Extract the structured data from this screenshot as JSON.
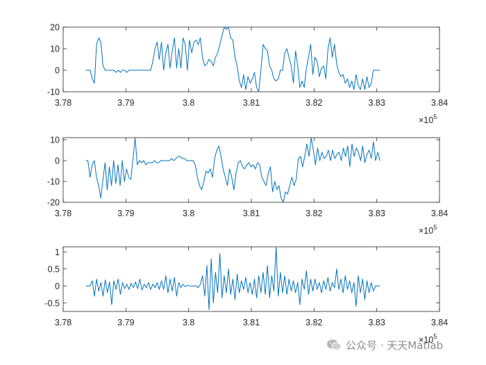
{
  "chart_data": [
    {
      "type": "line",
      "title": "",
      "xlabel": "",
      "ylabel": "",
      "xlim": [
        378000,
        384000
      ],
      "ylim": [
        -10,
        20
      ],
      "x_tick_labels": [
        "3.78",
        "3.79",
        "3.8",
        "3.81",
        "3.82",
        "3.83",
        "3.84"
      ],
      "y_ticks": [
        -10,
        0,
        10,
        20
      ],
      "y_tick_labels": [
        "-10",
        "0",
        "10",
        "20"
      ],
      "x_exponent_base": "×10",
      "x_exponent_power": "5",
      "grid": false,
      "color": "#0072BD",
      "series": [
        {
          "x_start": 378360,
          "x_end": 383050,
          "values": [
            0,
            0,
            0,
            -4,
            -6,
            12,
            15,
            13,
            2,
            0,
            0,
            0,
            0,
            0,
            -1,
            0,
            -1,
            0,
            0,
            -1,
            0,
            0,
            0,
            0,
            0,
            0,
            0,
            0,
            0,
            0,
            0,
            4,
            10,
            13,
            5,
            13,
            0,
            8,
            12,
            1,
            9,
            15,
            1,
            10,
            1,
            15,
            12,
            0,
            14,
            8,
            13,
            14,
            12,
            15,
            6,
            2,
            3,
            5,
            4,
            2,
            6,
            8,
            12,
            16,
            20,
            19,
            20,
            15,
            14,
            6,
            2,
            -5,
            -8,
            -2,
            -9,
            -3,
            -6,
            -4,
            -1,
            -8,
            -10,
            0,
            12,
            10,
            9,
            2,
            0,
            -4,
            -5,
            -4,
            0,
            0,
            8,
            10,
            6,
            2,
            -6,
            9,
            2,
            -8,
            -5,
            -8,
            1,
            6,
            12,
            -2,
            6,
            4,
            -3,
            1,
            2,
            -4,
            10,
            15,
            6,
            12,
            3,
            -1,
            -3,
            -2,
            -6,
            -4,
            -8,
            -5,
            -9,
            -2,
            -7,
            -9,
            -4,
            -9,
            -3,
            -8,
            -6,
            0,
            0,
            0,
            0
          ]
        }
      ]
    },
    {
      "type": "line",
      "title": "",
      "xlabel": "",
      "ylabel": "",
      "xlim": [
        378000,
        384000
      ],
      "ylim": [
        -20,
        11
      ],
      "x_tick_labels": [
        "3.78",
        "3.79",
        "3.8",
        "3.81",
        "3.82",
        "3.83",
        "3.84"
      ],
      "y_ticks": [
        -20,
        -10,
        0,
        10
      ],
      "y_tick_labels": [
        "-20",
        "-10",
        "0",
        "10"
      ],
      "x_exponent_base": "×10",
      "x_exponent_power": "5",
      "grid": false,
      "color": "#0072BD",
      "series": [
        {
          "x_start": 378360,
          "x_end": 383050,
          "values": [
            0,
            0,
            -8,
            -2,
            0,
            -8,
            -12,
            -18,
            -9,
            -1,
            -14,
            -3,
            -12,
            0,
            -11,
            -2,
            -12,
            0,
            -10,
            -4,
            -8,
            -9,
            1,
            12,
            -2,
            0,
            -1,
            0,
            -2,
            -1,
            -1,
            -1,
            0,
            -1,
            -1,
            0,
            0,
            0,
            0,
            0,
            1,
            0,
            1,
            2,
            2,
            1,
            1,
            0,
            0,
            0,
            0,
            -2,
            -8,
            -12,
            -14,
            -10,
            -5,
            -6,
            -4,
            -8,
            1,
            5,
            7,
            2,
            -4,
            -8,
            -12,
            -4,
            -8,
            -14,
            -6,
            -1,
            0,
            -3,
            -4,
            -2,
            -1,
            -3,
            -2,
            -4,
            -1,
            -2,
            -8,
            -10,
            -12,
            -6,
            -3,
            -15,
            -10,
            -14,
            -12,
            -18,
            -20,
            -15,
            -16,
            -12,
            -8,
            -12,
            -9,
            1,
            2,
            -3,
            2,
            8,
            2,
            11,
            5,
            -2,
            6,
            0,
            4,
            1,
            2,
            5,
            0,
            5,
            1,
            3,
            4,
            0,
            6,
            2,
            7,
            -3,
            8,
            2,
            6,
            4,
            0,
            7,
            -1,
            3,
            5,
            1,
            9,
            0,
            4,
            0
          ]
        }
      ]
    },
    {
      "type": "line",
      "title": "",
      "xlabel": "",
      "ylabel": "",
      "xlim": [
        378000,
        384000
      ],
      "ylim": [
        -0.75,
        1.15
      ],
      "x_tick_labels": [
        "3.78",
        "3.79",
        "3.8",
        "3.81",
        "3.82",
        "3.83",
        "3.84"
      ],
      "y_ticks": [
        -0.5,
        0,
        0.5,
        1
      ],
      "y_tick_labels": [
        "-0.5",
        "0",
        "0.5",
        "1"
      ],
      "x_exponent_base": "×10",
      "x_exponent_power": "5",
      "grid": false,
      "color": "#0072BD",
      "series": [
        {
          "x_start": 378360,
          "x_end": 383050,
          "values": [
            0,
            0,
            0,
            0.15,
            -0.3,
            0.2,
            -0.15,
            0.1,
            -0.3,
            0.18,
            -0.2,
            0.12,
            -0.55,
            0.15,
            -0.1,
            0.2,
            -0.25,
            0.1,
            -0.08,
            0.05,
            -0.1,
            0.08,
            -0.05,
            0.12,
            -0.08,
            0.2,
            -0.12,
            0.05,
            -0.05,
            0.1,
            -0.1,
            0.05,
            -0.05,
            0.1,
            -0.1,
            0.15,
            -0.1,
            0.3,
            -0.2,
            0.2,
            -0.15,
            0.25,
            -0.3,
            0.1,
            -0.05,
            0.05,
            -0.02,
            0.02,
            0,
            0,
            0,
            0,
            -0.05,
            0.05,
            0.3,
            -0.3,
            0.6,
            -0.7,
            0.8,
            -0.5,
            0.4,
            -0.2,
            0.95,
            -0.35,
            0.3,
            -0.2,
            0.5,
            -0.25,
            0.2,
            -0.4,
            0.35,
            -0.2,
            0.15,
            -0.1,
            0.25,
            -0.2,
            0.1,
            -0.25,
            0.2,
            -0.35,
            0.3,
            -0.2,
            0.4,
            -0.25,
            0.6,
            -0.35,
            0.3,
            -0.15,
            1.15,
            -0.3,
            0.4,
            -0.2,
            0.3,
            -0.25,
            0.2,
            -0.15,
            0.15,
            -0.2,
            0.1,
            -0.55,
            0.2,
            -0.1,
            0.45,
            -0.25,
            0.2,
            -0.15,
            0.2,
            -0.1,
            0.1,
            -0.2,
            0.15,
            -0.1,
            0.25,
            -0.15,
            0.1,
            -0.05,
            0.5,
            -0.1,
            0.2,
            -0.2,
            0.3,
            -0.1,
            0.15,
            -0.2,
            0.1,
            -0.6,
            0.3,
            -0.2,
            0.2,
            -0.4,
            0.15,
            -0.2,
            0.1,
            -0.15,
            0,
            0,
            0
          ]
        }
      ]
    }
  ],
  "watermark": {
    "logo_icon": "wechat-logo-icon",
    "text": "公众号 · 天天Matlab"
  }
}
